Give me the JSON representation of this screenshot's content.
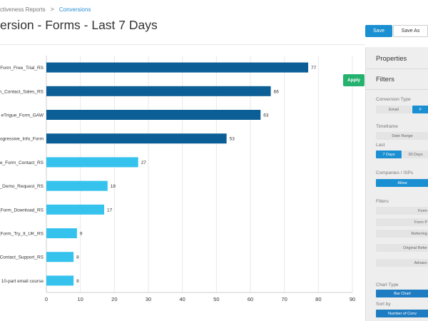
{
  "breadcrumb": {
    "parent": "ctiveness Reports",
    "separator": ">",
    "current": "Conversions"
  },
  "page_title": "ersion - Forms - Last 7 Days",
  "actions": {
    "save_label": "Save",
    "save_as_label": "Save As",
    "apply_label": "Apply"
  },
  "colors": {
    "dark_bar": "#0b5f96",
    "light_bar": "#35c3ee",
    "accent": "#1a8fd1",
    "apply": "#25b26e"
  },
  "chart_data": {
    "type": "bar",
    "orientation": "horizontal",
    "categories": [
      "Form_Free_Trial_RS",
      "n_Contact_Sales_RS",
      "eTrigue_Form_GAW",
      "ogressive_Info_Form",
      "e_Form_Contact_RS",
      "_Demo_Request_RS",
      "_Form_Download_RS",
      "_Form_Try_It_UK_RS",
      "Contact_Support_RS",
      "10-part email course"
    ],
    "values": [
      77,
      66,
      63,
      53,
      27,
      18,
      17,
      9,
      8,
      8
    ],
    "bar_colors": [
      "#0b5f96",
      "#0b5f96",
      "#0b5f96",
      "#0b5f96",
      "#35c3ee",
      "#35c3ee",
      "#35c3ee",
      "#35c3ee",
      "#35c3ee",
      "#35c3ee"
    ],
    "xlim": [
      0,
      90
    ],
    "xticks": [
      0,
      10,
      20,
      30,
      40,
      50,
      60,
      70,
      80,
      90
    ],
    "grid": true
  },
  "panel": {
    "properties_title": "Properties",
    "filters_title": "Filters",
    "conversion_type_label": "Conversion Type",
    "conversion_type_email": "Email",
    "conversion_type_forms": "F",
    "timeframe_label": "Timeframe",
    "date_range_label": "Date Range",
    "last_label": "Last",
    "last_7_days": "7 Days",
    "last_30_days": "30 Days",
    "companies_label": "Companies / ISPs",
    "allow_label": "Allow",
    "filters_label": "Filters",
    "filter_items": [
      "Form",
      "Form P",
      "Referring",
      "Original Refer",
      "Advanc"
    ],
    "chart_type_label": "Chart Type",
    "chart_type_value": "Bar Chart",
    "sort_by_label": "Sort by",
    "sort_by_value": "Number of Conv"
  }
}
